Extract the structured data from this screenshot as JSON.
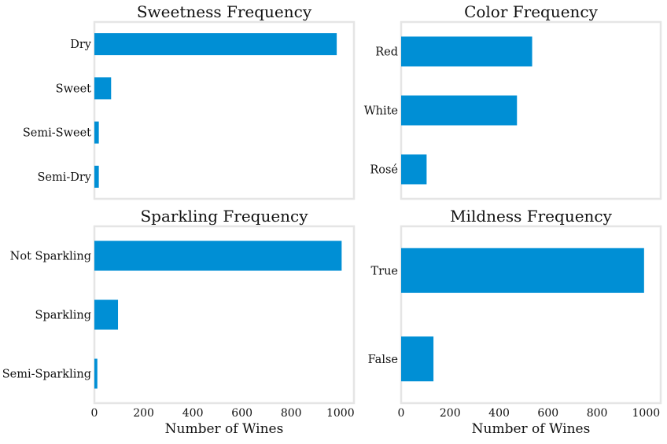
{
  "chart_data": [
    {
      "type": "bar",
      "orientation": "horizontal",
      "title": "Sweetness Frequency",
      "categories": [
        "Semi-Dry",
        "Semi-Sweet",
        "Sweet",
        "Dry"
      ],
      "values": [
        18,
        18,
        68,
        985
      ],
      "xlim": [
        0,
        1055
      ],
      "xticks": [],
      "xlabel": "",
      "grid": false,
      "color": "#008fd5"
    },
    {
      "type": "bar",
      "orientation": "horizontal",
      "title": "Color Frequency",
      "categories": [
        "Rosé",
        "White",
        "Red"
      ],
      "values": [
        104,
        473,
        535
      ],
      "xlim": [
        0,
        1060
      ],
      "xticks": [],
      "xlabel": "",
      "grid": false,
      "color": "#008fd5"
    },
    {
      "type": "bar",
      "orientation": "horizontal",
      "title": "Sparkling Frequency",
      "categories": [
        "Semi-Sparkling",
        "Sparkling",
        "Not Sparkling"
      ],
      "values": [
        12,
        96,
        1005
      ],
      "xlim": [
        0,
        1055
      ],
      "xticks": [
        "0",
        "200",
        "400",
        "600",
        "800",
        "1000"
      ],
      "xlabel": "Number of Wines",
      "grid": false,
      "color": "#008fd5"
    },
    {
      "type": "bar",
      "orientation": "horizontal",
      "title": "Mildness Frequency",
      "categories": [
        "False",
        "True"
      ],
      "values": [
        132,
        992
      ],
      "xlim": [
        0,
        1060
      ],
      "xticks": [
        "0",
        "200",
        "400",
        "600",
        "800",
        "1000"
      ],
      "xlabel": "Number of Wines",
      "grid": false,
      "color": "#008fd5"
    }
  ]
}
